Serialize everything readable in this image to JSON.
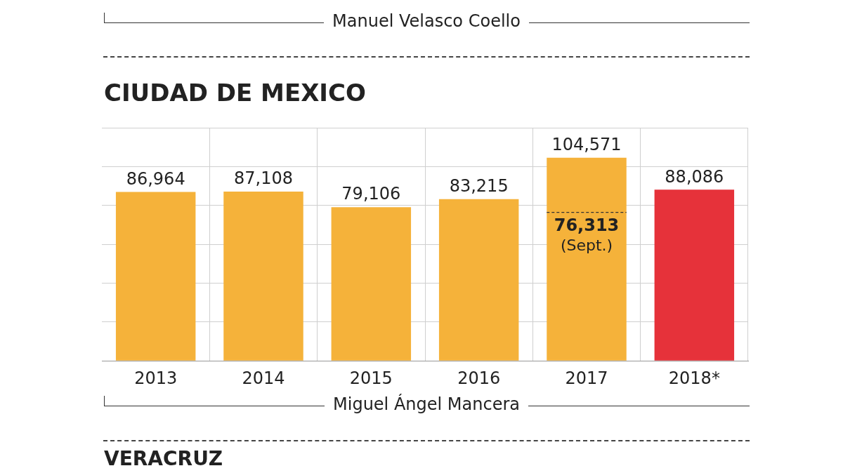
{
  "chart_data": {
    "type": "bar",
    "title": "CIUDAD DE MEXICO",
    "categories": [
      "2013",
      "2014",
      "2015",
      "2016",
      "2017",
      "2018*"
    ],
    "values": [
      86964,
      87108,
      79106,
      83215,
      104571,
      88086
    ],
    "value_labels": [
      "86,964",
      "87,108",
      "79,106",
      "83,215",
      "104,571",
      "88,086"
    ],
    "colors": [
      "#f5b23a",
      "#f5b23a",
      "#f5b23a",
      "#f5b23a",
      "#f5b23a",
      "#e6323a"
    ],
    "tick_labels": "x",
    "grid": true,
    "legend": false,
    "annotations": [
      "Manuel Velasco Coello",
      "Miguel Ángel Mancera",
      "VERACRUZ",
      "76,313 (Sept.)"
    ]
  }
}
